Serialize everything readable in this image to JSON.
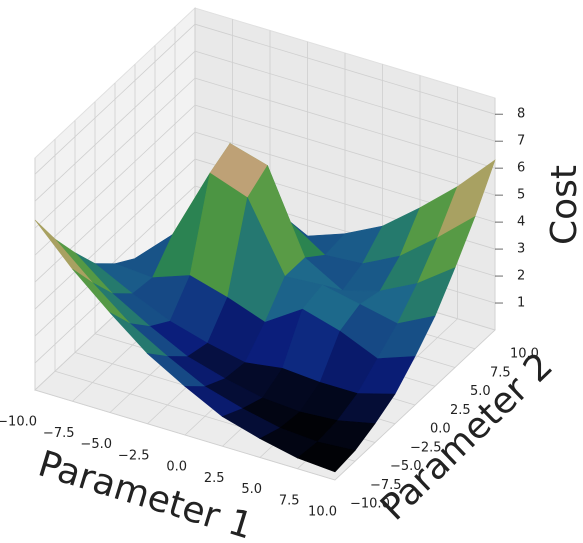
{
  "chart_data": {
    "type": "surface",
    "x_label": "Parameter 1",
    "y_label": "Parameter 2",
    "z_label": "Cost",
    "x": [
      -10,
      -7.5,
      -5,
      -2.5,
      0,
      2.5,
      5,
      7.5,
      10
    ],
    "y": [
      -10,
      -7.5,
      -5,
      -2.5,
      0,
      2.5,
      5,
      7.5,
      10
    ],
    "z": [
      [
        6.3,
        4.9,
        3.7,
        2.6,
        1.8,
        1.1,
        0.7,
        0.4,
        0.3
      ],
      [
        4.9,
        3.7,
        2.6,
        1.8,
        1.1,
        0.7,
        0.4,
        0.3,
        0.4
      ],
      [
        3.7,
        2.6,
        1.8,
        1.1,
        0.7,
        0.4,
        0.3,
        0.4,
        0.7
      ],
      [
        2.6,
        1.9,
        1.3,
        0.9,
        0.6,
        0.8,
        0.7,
        0.7,
        1.1
      ],
      [
        1.9,
        1.8,
        2.3,
        1.9,
        1.4,
        2.3,
        1.9,
        1.3,
        1.8
      ],
      [
        1.4,
        2.7,
        5.4,
        4.9,
        2.4,
        2.5,
        2.2,
        1.9,
        2.6
      ],
      [
        1.0,
        2.6,
        5.8,
        5.4,
        2.4,
        1.6,
        2.0,
        2.7,
        3.7
      ],
      [
        0.5,
        1.2,
        2.6,
        2.7,
        1.8,
        1.9,
        2.6,
        3.7,
        4.9
      ],
      [
        0.3,
        0.5,
        1.0,
        1.4,
        1.9,
        2.6,
        3.7,
        4.9,
        6.3
      ]
    ],
    "xlim": [
      -10,
      10
    ],
    "ylim": [
      -10,
      10
    ],
    "zlim": [
      0,
      8.6
    ],
    "xticks": [
      {
        "value": -10,
        "label": "−10.0"
      },
      {
        "value": -7.5,
        "label": "−7.5"
      },
      {
        "value": -5,
        "label": "−5.0"
      },
      {
        "value": -2.5,
        "label": "−2.5"
      },
      {
        "value": 0,
        "label": "0.0"
      },
      {
        "value": 2.5,
        "label": "2.5"
      },
      {
        "value": 5,
        "label": "5.0"
      },
      {
        "value": 7.5,
        "label": "7.5"
      },
      {
        "value": 10,
        "label": "10.0"
      }
    ],
    "yticks": [
      {
        "value": -10,
        "label": "−10.0"
      },
      {
        "value": -7.5,
        "label": "−7.5"
      },
      {
        "value": -5,
        "label": "−5.0"
      },
      {
        "value": -2.5,
        "label": "−2.5"
      },
      {
        "value": 0,
        "label": "0.0"
      },
      {
        "value": 2.5,
        "label": "2.5"
      },
      {
        "value": 5,
        "label": "5.0"
      },
      {
        "value": 7.5,
        "label": "7.5"
      },
      {
        "value": 10,
        "label": "10.0"
      }
    ],
    "zticks": [
      1,
      2,
      3,
      4,
      5,
      6,
      7,
      8
    ],
    "colormap": [
      "#000000",
      "#0b1f7e",
      "#1f6f8c",
      "#2f8a3e",
      "#88ad4e",
      "#b99a6c",
      "#fbf3f3"
    ],
    "grid": true
  }
}
